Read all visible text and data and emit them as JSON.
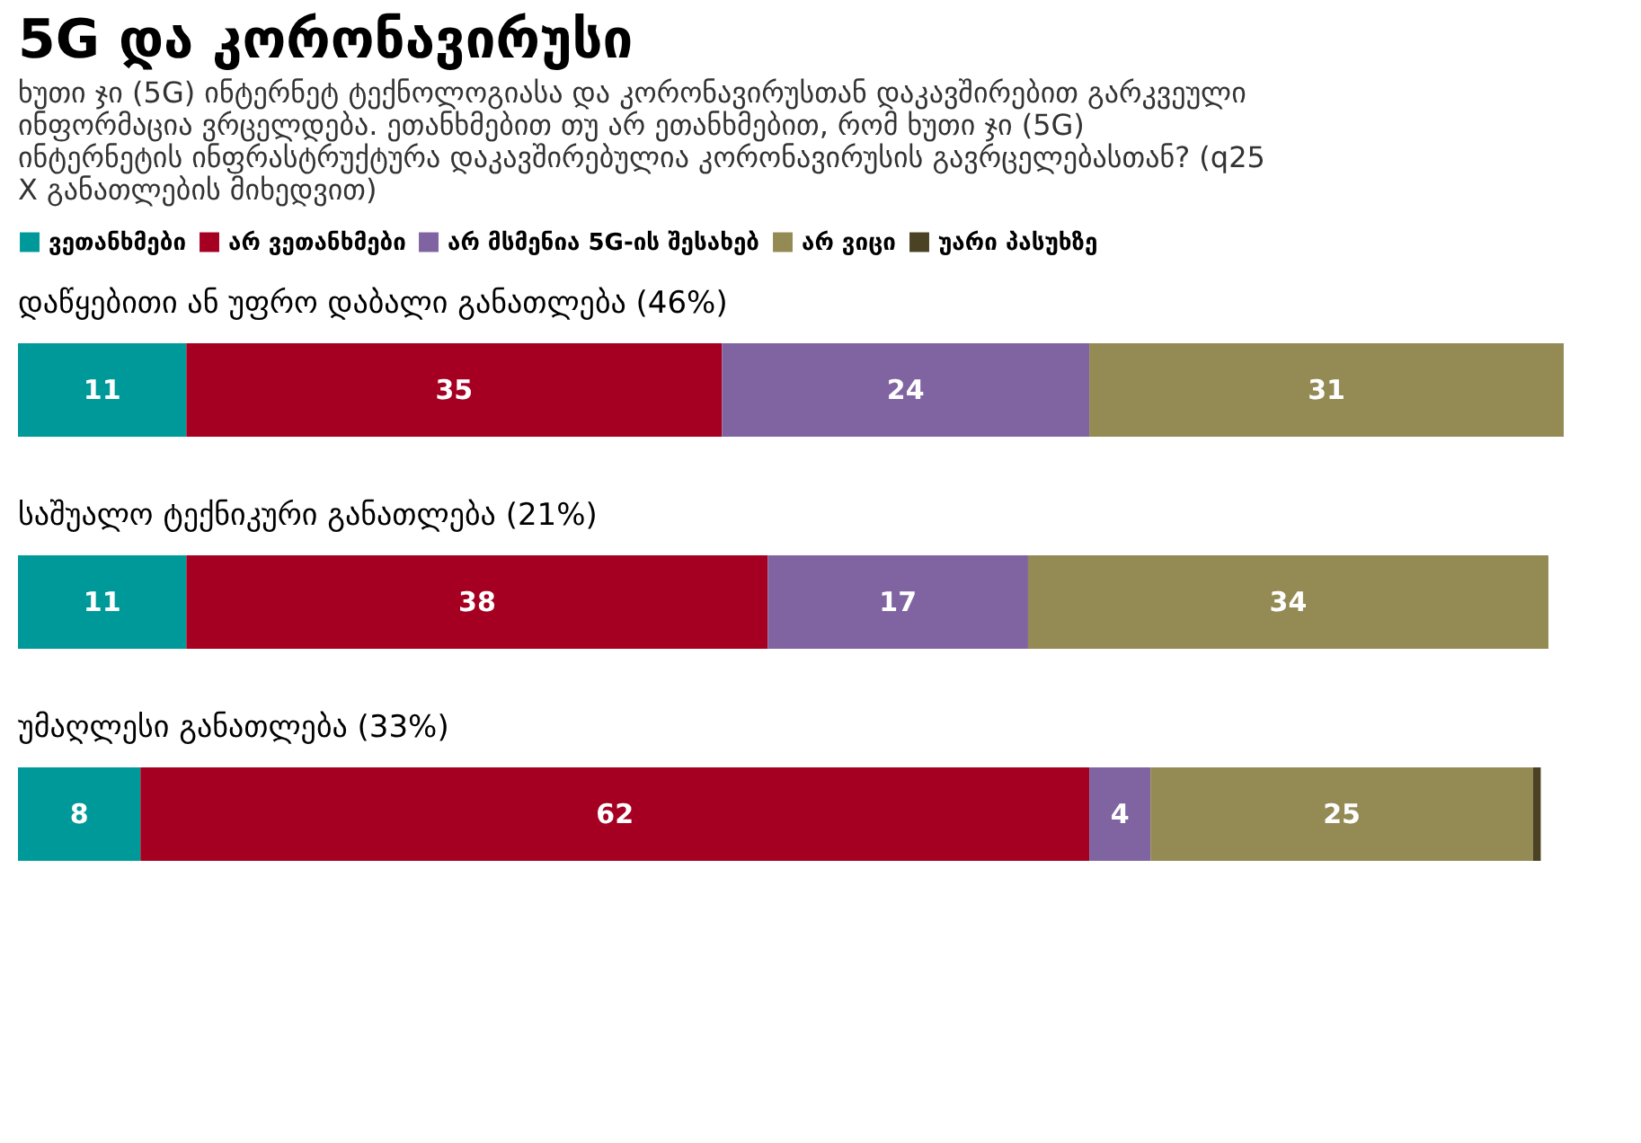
{
  "chart_data": {
    "type": "bar",
    "orientation": "horizontal",
    "stacked": true,
    "title": "5G და კორონავირუსი",
    "subtitle": "ხუთი ჯი (5G) ინტერნეტ ტექნოლოგიასა და კორონავირუსთან დაკავშირებით გარკვეული ინფორმაცია ვრცელდება. ეთანხმებით თუ არ ეთანხმებით, რომ ხუთი ჯი (5G) ინტერნეტის ინფრასტრუქტურა დაკავშირებულია კორონავირუსის გავრცელებასთან? (q25 X განათლების მიხედვით)",
    "categories": [
      "დაწყებითი ან უფრო დაბალი განათლება (46%)",
      "საშუალო ტექნიკური განათლება (21%)",
      "უმაღლესი განათლება (33%)"
    ],
    "series": [
      {
        "name": "ვეთანხმები",
        "color": "#009999",
        "values": [
          11,
          11,
          8
        ],
        "value_labels": [
          "11",
          "11",
          "8"
        ]
      },
      {
        "name": "არ ვეთანხმები",
        "color": "#a50021",
        "values": [
          35,
          38,
          62
        ],
        "value_labels": [
          "35",
          "38",
          "62"
        ]
      },
      {
        "name": "არ მსმენია 5G-ის შესახებ",
        "color": "#8064a2",
        "values": [
          24,
          17,
          4
        ],
        "value_labels": [
          "24",
          "17",
          "4"
        ]
      },
      {
        "name": "არ ვიცი",
        "color": "#948a54",
        "values": [
          31,
          34,
          25
        ],
        "value_labels": [
          "31",
          "34",
          "25"
        ]
      },
      {
        "name": "უარი პასუხზე",
        "color": "#4a4223",
        "values": [
          null,
          null,
          0.5
        ],
        "value_labels": [
          null,
          null,
          null
        ]
      }
    ],
    "legend": "top",
    "tick_labels": false
  }
}
